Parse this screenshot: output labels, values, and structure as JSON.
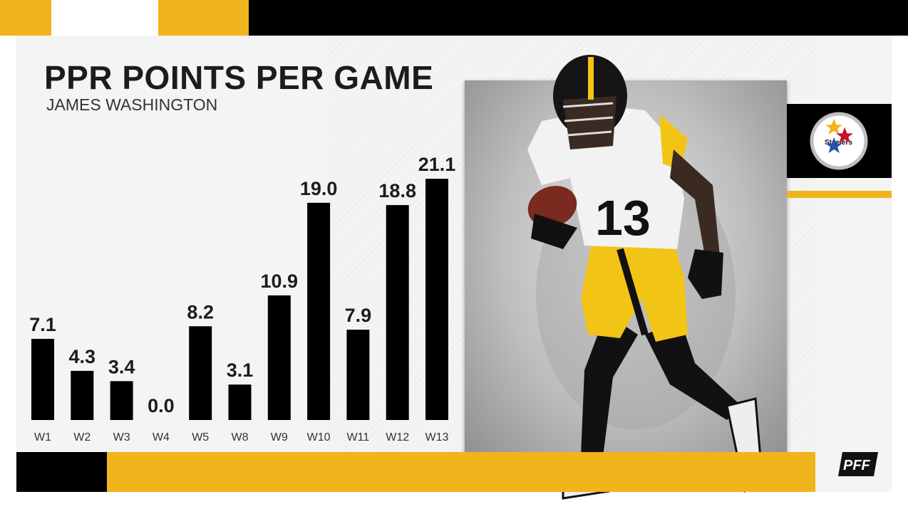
{
  "colors": {
    "gold": "#f0b41c",
    "black": "#000000",
    "panel": "#f4f4f4",
    "text": "#1c1c1c"
  },
  "header": {
    "title": "PPR POINTS PER GAME",
    "subtitle": "JAMES WASHINGTON"
  },
  "chart_data": {
    "type": "bar",
    "title": "PPR POINTS PER GAME",
    "subtitle": "JAMES WASHINGTON",
    "categories": [
      "W1",
      "W2",
      "W3",
      "W4",
      "W5",
      "W8",
      "W9",
      "W10",
      "W11",
      "W12",
      "W13"
    ],
    "values": [
      7.1,
      4.3,
      3.4,
      0.0,
      8.2,
      3.1,
      10.9,
      19.0,
      7.9,
      18.8,
      21.1
    ],
    "value_labels": [
      "7.1",
      "4.3",
      "3.4",
      "0.0",
      "8.2",
      "3.1",
      "10.9",
      "19.0",
      "7.9",
      "18.8",
      "21.1"
    ],
    "bar_color": "#000000",
    "grid": false,
    "legend": "none"
  },
  "player_photo": {
    "jersey_number": "13"
  },
  "team_logo": {
    "name": "Steelers",
    "icon": "steelers-logo-icon"
  },
  "brand": {
    "text": "PFF",
    "icon": "pff-logo-icon"
  }
}
